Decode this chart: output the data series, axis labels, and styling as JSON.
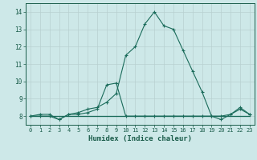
{
  "xlabel": "Humidex (Indice chaleur)",
  "x": [
    0,
    1,
    2,
    3,
    4,
    5,
    6,
    7,
    8,
    9,
    10,
    11,
    12,
    13,
    14,
    15,
    16,
    17,
    18,
    19,
    20,
    21,
    22,
    23
  ],
  "y_main": [
    8.0,
    8.1,
    8.1,
    7.8,
    8.1,
    8.2,
    8.4,
    8.5,
    8.8,
    9.3,
    11.5,
    12.0,
    13.3,
    14.0,
    13.2,
    13.0,
    11.8,
    10.6,
    9.4,
    8.0,
    7.8,
    8.1,
    8.5,
    8.1
  ],
  "y_dew1": [
    8.0,
    8.0,
    8.0,
    7.8,
    8.1,
    8.1,
    8.2,
    8.4,
    9.8,
    9.9,
    8.0,
    8.0,
    8.0,
    8.0,
    8.0,
    8.0,
    8.0,
    8.0,
    8.0,
    8.0,
    8.0,
    8.1,
    8.4,
    8.1
  ],
  "y_flat1": [
    8.0,
    8.0,
    8.0,
    8.0,
    8.0,
    8.0,
    8.0,
    8.0,
    8.0,
    8.0,
    8.0,
    8.0,
    8.0,
    8.0,
    8.0,
    8.0,
    8.0,
    8.0,
    8.0,
    8.0,
    8.0,
    8.0,
    8.0,
    8.0
  ],
  "y_flat2": [
    8.0,
    8.0,
    8.0,
    8.0,
    8.0,
    8.0,
    8.0,
    8.0,
    8.0,
    8.0,
    8.0,
    8.0,
    8.0,
    8.0,
    8.0,
    8.0,
    8.0,
    8.0,
    8.0,
    8.0,
    8.0,
    8.0,
    8.0,
    8.0
  ],
  "y_flat3": [
    8.0,
    8.0,
    8.0,
    8.0,
    8.0,
    8.0,
    8.0,
    8.0,
    8.0,
    8.0,
    8.0,
    8.0,
    8.0,
    8.0,
    8.0,
    8.0,
    8.0,
    8.0,
    8.0,
    8.0,
    8.0,
    8.0,
    8.0,
    8.0
  ],
  "ylim": [
    7.5,
    14.5
  ],
  "xlim": [
    -0.5,
    23.5
  ],
  "yticks": [
    8,
    9,
    10,
    11,
    12,
    13,
    14
  ],
  "xticks": [
    0,
    1,
    2,
    3,
    4,
    5,
    6,
    7,
    8,
    9,
    10,
    11,
    12,
    13,
    14,
    15,
    16,
    17,
    18,
    19,
    20,
    21,
    22,
    23
  ],
  "line_color": "#1a6b5a",
  "bg_color": "#cde8e8",
  "grid_color": "#b8d0d0",
  "text_color": "#1a5c4a"
}
